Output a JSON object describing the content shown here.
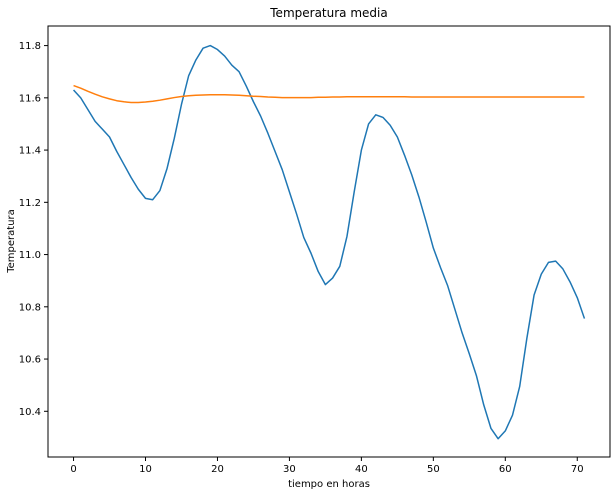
{
  "chart_data": {
    "type": "line",
    "title": "Temperatura media",
    "xlabel": "tiempo en horas",
    "ylabel": "Temperatura",
    "xlim": [
      -3.55,
      74.55
    ],
    "ylim": [
      10.225,
      11.875
    ],
    "xticks": [
      0,
      10,
      20,
      30,
      40,
      50,
      60,
      70
    ],
    "yticks": [
      10.4,
      10.6,
      10.8,
      11.0,
      11.2,
      11.4,
      11.6,
      11.8
    ],
    "ytick_labels": [
      "10.4",
      "10.6",
      "10.8",
      "11.0",
      "11.2",
      "11.4",
      "11.6",
      "11.8"
    ],
    "grid": false,
    "legend": "none",
    "series": [
      {
        "color": "#1f77b4",
        "x": [
          0,
          1,
          2,
          3,
          4,
          5,
          6,
          7,
          8,
          9,
          10,
          11,
          12,
          13,
          14,
          15,
          16,
          17,
          18,
          19,
          20,
          21,
          22,
          23,
          24,
          25,
          26,
          27,
          28,
          29,
          30,
          31,
          32,
          33,
          34,
          35,
          36,
          37,
          38,
          39,
          40,
          41,
          42,
          43,
          44,
          45,
          46,
          47,
          48,
          49,
          50,
          51,
          52,
          53,
          54,
          55,
          56,
          57,
          58,
          59,
          60,
          61,
          62,
          63,
          64,
          65,
          66,
          67,
          68,
          69,
          70,
          71
        ],
        "values": [
          11.63,
          11.6,
          11.555,
          11.51,
          11.48,
          11.45,
          11.395,
          11.345,
          11.295,
          11.25,
          11.215,
          11.21,
          11.245,
          11.33,
          11.445,
          11.575,
          11.685,
          11.745,
          11.79,
          11.8,
          11.785,
          11.76,
          11.725,
          11.7,
          11.645,
          11.585,
          11.53,
          11.465,
          11.395,
          11.325,
          11.24,
          11.155,
          11.065,
          11.005,
          10.935,
          10.885,
          10.91,
          10.955,
          11.07,
          11.24,
          11.4,
          11.5,
          11.535,
          11.525,
          11.495,
          11.45,
          11.38,
          11.305,
          11.22,
          11.125,
          11.025,
          10.95,
          10.88,
          10.79,
          10.7,
          10.62,
          10.535,
          10.425,
          10.335,
          10.295,
          10.325,
          10.385,
          10.495,
          10.68,
          10.845,
          10.925,
          10.97,
          10.975,
          10.945,
          10.895,
          10.835,
          10.755
        ]
      },
      {
        "color": "#ff7f0e",
        "x": [
          0,
          1,
          2,
          3,
          4,
          5,
          6,
          7,
          8,
          9,
          10,
          11,
          12,
          13,
          14,
          15,
          16,
          17,
          18,
          19,
          20,
          21,
          22,
          23,
          24,
          25,
          26,
          27,
          28,
          29,
          30,
          31,
          32,
          33,
          34,
          35,
          36,
          37,
          38,
          39,
          40,
          41,
          42,
          43,
          44,
          45,
          46,
          47,
          48,
          49,
          50,
          51,
          52,
          53,
          54,
          55,
          56,
          57,
          58,
          59,
          60,
          61,
          62,
          63,
          64,
          65,
          66,
          67,
          68,
          69,
          70,
          71
        ],
        "values": [
          11.647,
          11.637,
          11.625,
          11.614,
          11.604,
          11.596,
          11.589,
          11.585,
          11.582,
          11.582,
          11.584,
          11.587,
          11.591,
          11.596,
          11.601,
          11.605,
          11.608,
          11.61,
          11.611,
          11.612,
          11.612,
          11.612,
          11.611,
          11.61,
          11.608,
          11.606,
          11.605,
          11.603,
          11.602,
          11.601,
          11.601,
          11.601,
          11.601,
          11.601,
          11.602,
          11.602,
          11.603,
          11.603,
          11.604,
          11.604,
          11.604,
          11.604,
          11.604,
          11.604,
          11.604,
          11.604,
          11.604,
          11.603,
          11.603,
          11.603,
          11.603,
          11.603,
          11.603,
          11.603,
          11.603,
          11.603,
          11.603,
          11.603,
          11.603,
          11.603,
          11.603,
          11.603,
          11.603,
          11.603,
          11.603,
          11.603,
          11.603,
          11.603,
          11.603,
          11.603,
          11.603,
          11.603
        ]
      }
    ]
  }
}
